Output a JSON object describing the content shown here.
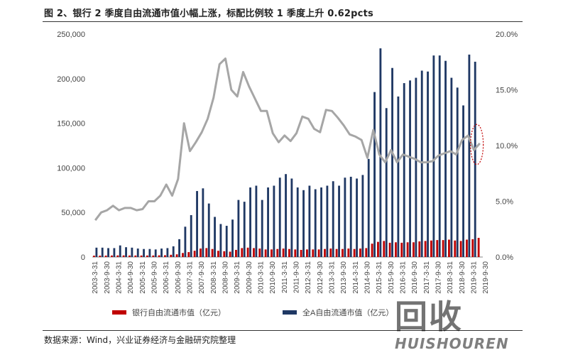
{
  "header": {
    "title": "图 2、银行 2 季度自由流通市值小幅上涨，标配比例较 1 季度上升 0.62pcts"
  },
  "footer": {
    "source": "数据来源：Wind，兴业证券经济与金融研究院整理"
  },
  "watermark": {
    "main": "回收",
    "sub": "HUISHOUREN"
  },
  "colors": {
    "bank_bar": "#C00000",
    "all_bar": "#1F3864",
    "line": "#A6A6A6",
    "highlight": "#C00000"
  },
  "chart_data": {
    "type": "bar",
    "categories": [
      "2003-3-31",
      "2003-6-30",
      "2003-9-30",
      "2003-12-31",
      "2004-3-31",
      "2004-6-30",
      "2004-9-30",
      "2004-12-31",
      "2005-3-31",
      "2005-6-30",
      "2005-9-30",
      "2005-12-31",
      "2006-3-31",
      "2006-6-30",
      "2006-9-30",
      "2006-12-31",
      "2007-3-31",
      "2007-6-30",
      "2007-9-30",
      "2007-12-31",
      "2008-3-31",
      "2008-6-30",
      "2008-9-30",
      "2008-12-31",
      "2009-3-31",
      "2009-6-30",
      "2009-9-30",
      "2009-12-31",
      "2010-3-31",
      "2010-6-30",
      "2010-9-30",
      "2010-12-31",
      "2011-3-31",
      "2011-6-30",
      "2011-9-30",
      "2011-12-31",
      "2012-3-31",
      "2012-6-30",
      "2012-9-30",
      "2012-12-31",
      "2013-3-31",
      "2013-6-30",
      "2013-9-30",
      "2013-12-31",
      "2014-3-31",
      "2014-6-30",
      "2014-9-30",
      "2014-12-31",
      "2015-3-31",
      "2015-6-30",
      "2015-9-30",
      "2015-12-31",
      "2016-3-31",
      "2016-6-30",
      "2016-9-30",
      "2016-12-31",
      "2017-3-31",
      "2017-6-30",
      "2017-9-30",
      "2017-12-31",
      "2018-3-31",
      "2018-6-30",
      "2018-9-30",
      "2018-12-31",
      "2019-3-31",
      "2019-6-30"
    ],
    "tick_labels": [
      "2003-3-31",
      "2003-9-30",
      "2004-3-31",
      "2004-9-30",
      "2005-3-31",
      "2005-9-30",
      "2006-3-31",
      "2006-9-30",
      "2007-3-31",
      "2007-9-30",
      "2008-3-31",
      "2008-9-30",
      "2009-3-31",
      "2009-9-30",
      "2010-3-31",
      "2010-9-30",
      "2011-3-31",
      "2011-9-30",
      "2012-3-31",
      "2012-9-30",
      "2013-3-31",
      "2013-9-30",
      "2014-3-31",
      "2014-9-30",
      "2015-3-31",
      "2015-9-30",
      "2016-3-31",
      "2016-9-30",
      "2017-3-31",
      "2017-9-30",
      "2018-3-31",
      "2018-9-30",
      "2019-3-31",
      "2019-9-30"
    ],
    "series": [
      {
        "name": "银行自由流通市值（亿元）",
        "axis": "left",
        "kind": "bar",
        "values": [
          1500,
          1500,
          1600,
          1700,
          1800,
          1800,
          1700,
          1700,
          1700,
          1700,
          1700,
          1900,
          2000,
          2500,
          3000,
          4500,
          5500,
          7000,
          9500,
          10000,
          9000,
          7000,
          6500,
          6000,
          8000,
          10000,
          10500,
          10000,
          9500,
          8500,
          8500,
          9000,
          9500,
          9000,
          8500,
          8000,
          8500,
          8500,
          8500,
          9000,
          9500,
          9000,
          9000,
          9500,
          9000,
          9500,
          10000,
          15000,
          17000,
          18000,
          16000,
          16500,
          16000,
          16500,
          16500,
          17500,
          18000,
          18500,
          19000,
          19000,
          19500,
          18500,
          18000,
          19500,
          20000,
          21500
        ]
      },
      {
        "name": "全A自由流通市值（亿元）",
        "axis": "left",
        "kind": "bar",
        "values": [
          10500,
          10500,
          10000,
          10000,
          13000,
          11000,
          10500,
          9500,
          9000,
          9000,
          8500,
          9500,
          10000,
          12000,
          20000,
          34000,
          47000,
          74000,
          77000,
          60000,
          45000,
          37000,
          35000,
          42000,
          64000,
          62000,
          78000,
          80000,
          64000,
          78000,
          80000,
          89000,
          93000,
          88000,
          78000,
          75000,
          80000,
          76000,
          78000,
          80000,
          85000,
          80000,
          89000,
          90000,
          88000,
          92000,
          110000,
          185000,
          234000,
          167000,
          212000,
          180000,
          195000,
          198000,
          201000,
          209000,
          208000,
          226000,
          226000,
          220000,
          201000,
          190000,
          170000,
          227000,
          219000,
          0
        ]
      },
      {
        "name": "",
        "axis": "right",
        "kind": "line",
        "values": [
          3.3,
          4.0,
          4.2,
          4.6,
          4.2,
          4.4,
          4.4,
          4.2,
          4.3,
          5.0,
          5.0,
          5.5,
          6.5,
          5.5,
          7.0,
          12.0,
          9.5,
          10.3,
          11.2,
          12.4,
          14.3,
          17.3,
          17.8,
          15.0,
          14.4,
          16.6,
          15.3,
          14.2,
          13.1,
          13.1,
          11.1,
          10.3,
          10.9,
          10.4,
          11.1,
          12.6,
          12.4,
          11.5,
          11.2,
          13.2,
          13.1,
          12.5,
          11.8,
          11.0,
          10.8,
          10.5,
          8.9,
          11.4,
          9.2,
          8.5,
          9.6,
          8.5,
          9.2,
          9.0,
          8.8,
          8.5,
          8.5,
          8.6,
          9.1,
          9.3,
          9.5,
          9.2,
          10.5,
          10.9,
          9.6,
          10.2
        ]
      }
    ],
    "y_left": {
      "min": 0,
      "max": 250000,
      "ticks": [
        "0",
        "50,000",
        "100,000",
        "150,000",
        "200,000",
        "250,000"
      ]
    },
    "y_right": {
      "min": 0,
      "max": 20,
      "ticks": [
        "0.0%",
        "5.0%",
        "10.0%",
        "15.0%",
        "20.0%"
      ]
    },
    "grid": false,
    "legend": "bottom",
    "legend_entries": [
      "银行自由流通市值（亿元）",
      "全A自由流通市值（亿元）"
    ],
    "highlight_ellipse": {
      "x_index": 64.5,
      "y_right": 10.1,
      "ry_right": 1.8
    }
  }
}
